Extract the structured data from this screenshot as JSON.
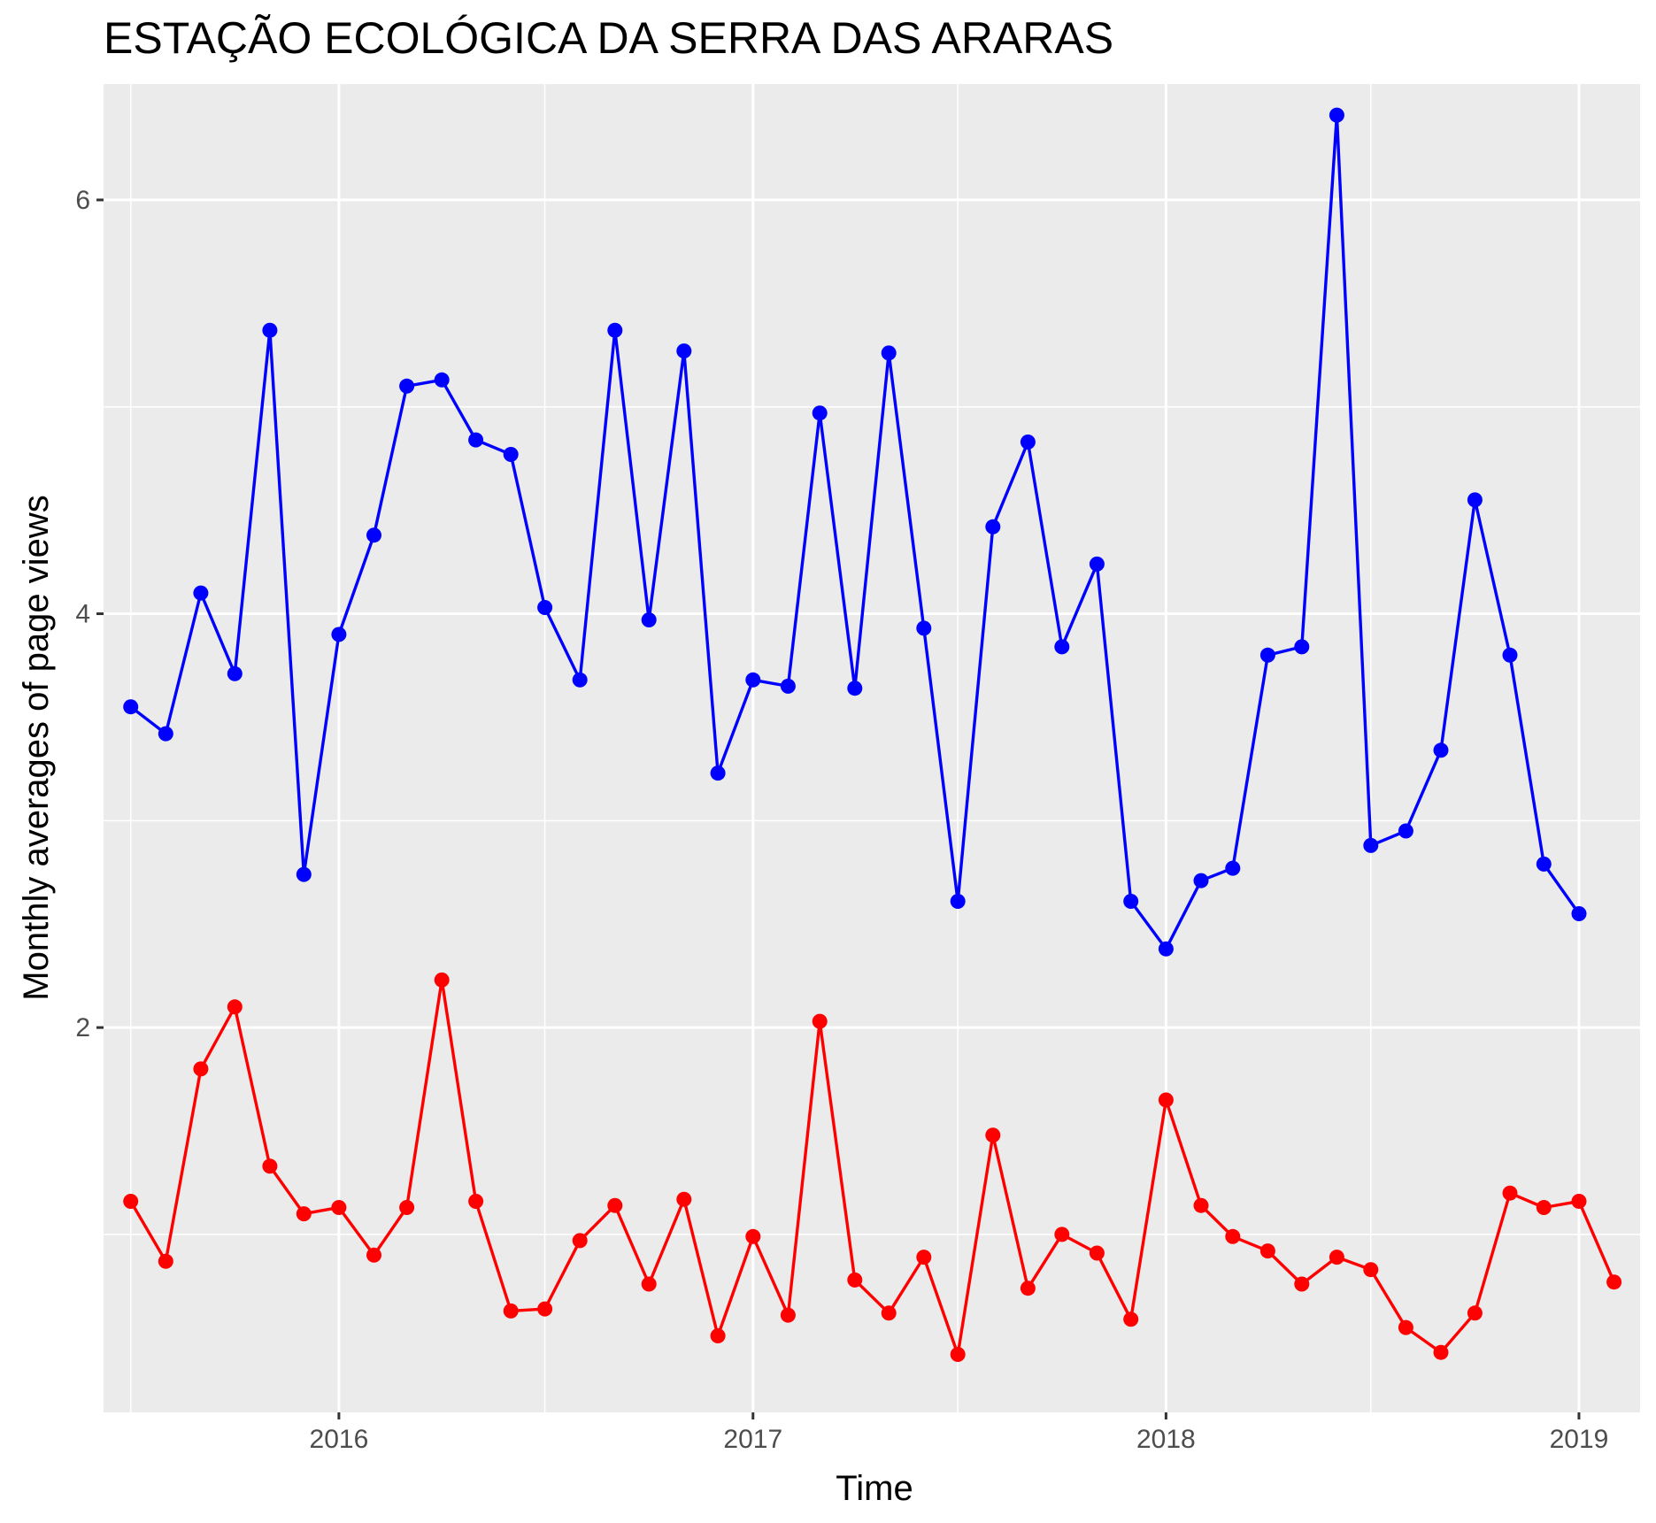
{
  "chart_data": {
    "type": "line",
    "title": "ESTAÇÃO ECOLÓGICA DA SERRA DAS ARARAS",
    "xlabel": "Time",
    "ylabel": "Monthly averages of page views",
    "x_ticks": [
      "2016",
      "2017",
      "2018",
      "2019"
    ],
    "y_ticks": [
      "2",
      "4",
      "6"
    ],
    "ylim": [
      0.14,
      6.56
    ],
    "xlim": [
      "2015-06-07",
      "2019-02-24"
    ],
    "grid": true,
    "panel_background": "#ebebeb",
    "series": [
      {
        "color": "#0000ff",
        "x": [
          "2015-07-01",
          "2015-08-01",
          "2015-09-01",
          "2015-10-01",
          "2015-11-01",
          "2015-12-01",
          "2016-01-01",
          "2016-02-01",
          "2016-03-01",
          "2016-04-01",
          "2016-05-01",
          "2016-06-01",
          "2016-07-01",
          "2016-08-01",
          "2016-09-01",
          "2016-10-01",
          "2016-11-01",
          "2016-12-01",
          "2017-01-01",
          "2017-02-01",
          "2017-03-01",
          "2017-04-01",
          "2017-05-01",
          "2017-06-01",
          "2017-07-01",
          "2017-08-01",
          "2017-09-01",
          "2017-10-01",
          "2017-11-01",
          "2017-12-01",
          "2018-01-01",
          "2018-02-01",
          "2018-03-01",
          "2018-04-01",
          "2018-05-01",
          "2018-06-01",
          "2018-07-01",
          "2018-08-01",
          "2018-09-01",
          "2018-10-01",
          "2018-11-01",
          "2018-12-01",
          "2019-01-01"
        ],
        "values": [
          3.55,
          3.42,
          4.1,
          3.71,
          5.37,
          2.74,
          3.9,
          4.38,
          5.1,
          5.13,
          4.84,
          4.77,
          4.03,
          3.68,
          5.37,
          3.97,
          5.27,
          3.23,
          3.68,
          3.65,
          4.97,
          3.64,
          5.26,
          3.93,
          2.61,
          4.42,
          4.83,
          3.84,
          4.24,
          2.61,
          2.38,
          2.71,
          2.77,
          3.8,
          3.84,
          6.41,
          2.88,
          2.95,
          3.34,
          4.55,
          3.8,
          2.79,
          2.55
        ]
      },
      {
        "color": "#ff0000",
        "x": [
          "2015-07-01",
          "2015-08-01",
          "2015-09-01",
          "2015-10-01",
          "2015-11-01",
          "2015-12-01",
          "2016-01-01",
          "2016-02-01",
          "2016-03-01",
          "2016-04-01",
          "2016-05-01",
          "2016-06-01",
          "2016-07-01",
          "2016-08-01",
          "2016-09-01",
          "2016-10-01",
          "2016-11-01",
          "2016-12-01",
          "2017-01-01",
          "2017-02-01",
          "2017-03-01",
          "2017-04-01",
          "2017-05-01",
          "2017-06-01",
          "2017-07-01",
          "2017-08-01",
          "2017-09-01",
          "2017-10-01",
          "2017-11-01",
          "2017-12-01",
          "2018-01-01",
          "2018-02-01",
          "2018-03-01",
          "2018-04-01",
          "2018-05-01",
          "2018-06-01",
          "2018-07-01",
          "2018-08-01",
          "2018-09-01",
          "2018-10-01",
          "2018-11-01",
          "2018-12-01",
          "2019-01-01",
          "2019-02-01"
        ],
        "values": [
          1.16,
          0.87,
          1.8,
          2.1,
          1.33,
          1.1,
          1.13,
          0.9,
          1.13,
          2.23,
          1.16,
          0.63,
          0.64,
          0.97,
          1.14,
          0.76,
          1.17,
          0.51,
          0.99,
          0.61,
          2.03,
          0.78,
          0.62,
          0.89,
          0.42,
          1.48,
          0.74,
          1.0,
          0.91,
          0.59,
          1.65,
          1.14,
          0.99,
          0.92,
          0.76,
          0.89,
          0.83,
          0.55,
          0.43,
          0.62,
          1.2,
          1.13,
          1.16,
          0.77
        ]
      }
    ]
  }
}
